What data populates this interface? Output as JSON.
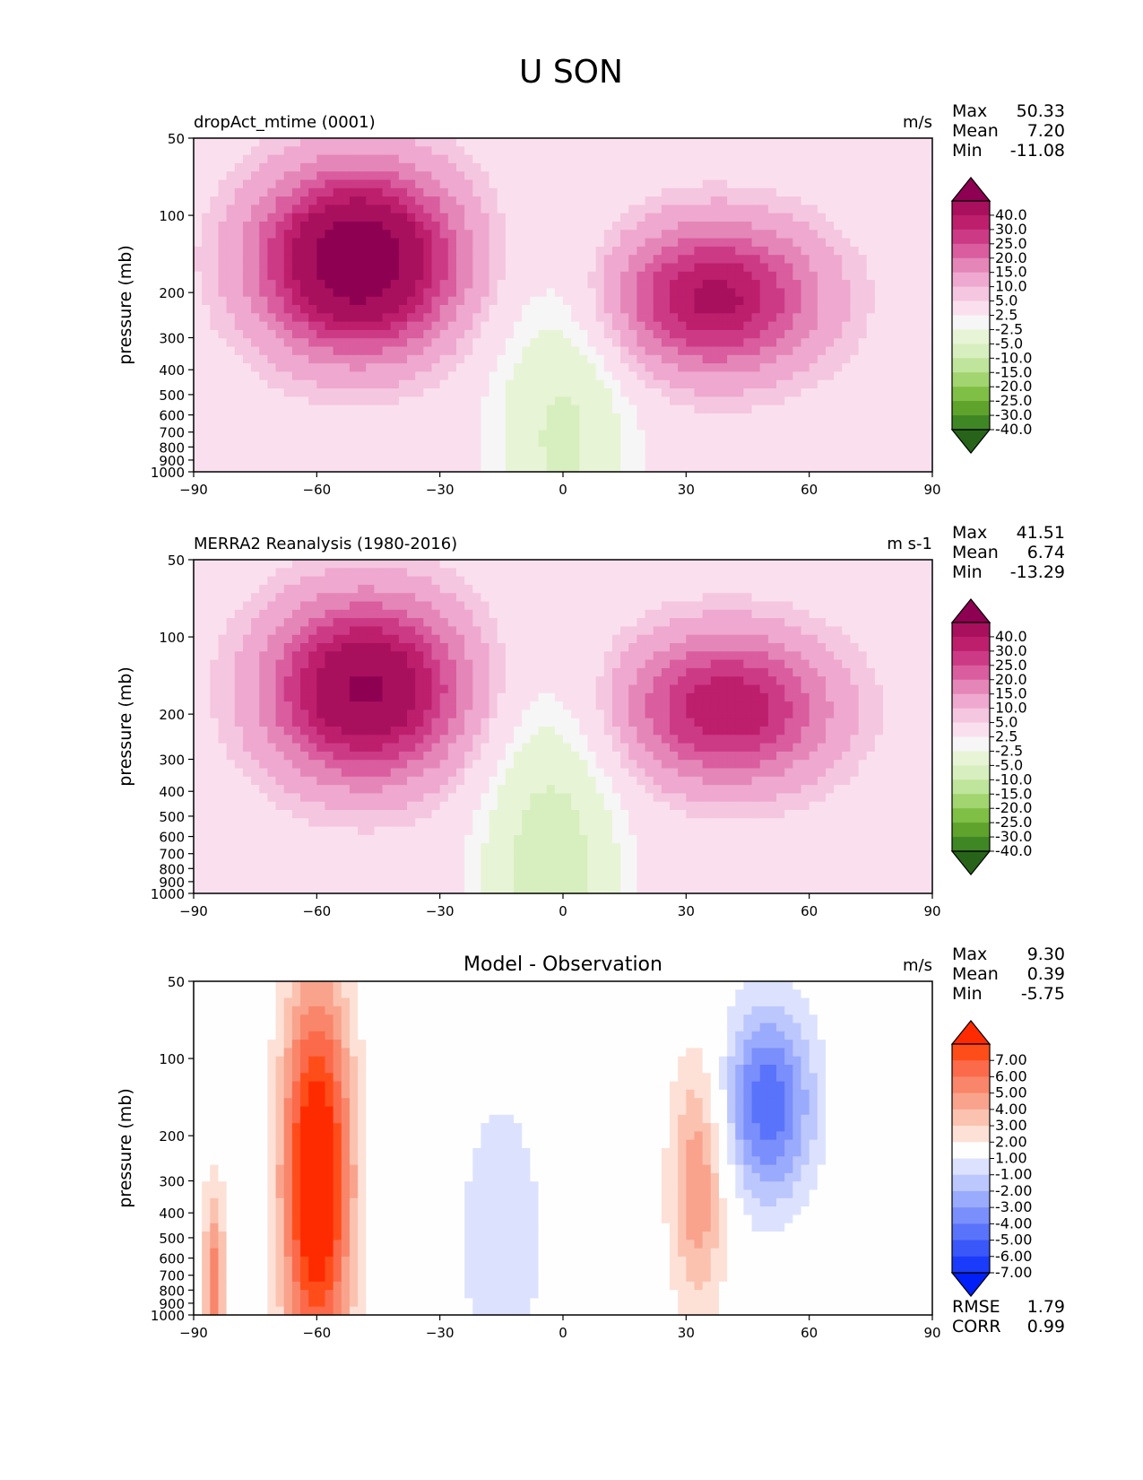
{
  "figure": {
    "title": "U SON"
  },
  "chart_data": [
    {
      "type": "contour",
      "title_left": "dropAct_mtime (0001)",
      "title_center": "",
      "units": "m/s",
      "xlabel": "",
      "ylabel": "pressure (mb)",
      "xlim": [
        -90,
        90
      ],
      "ylim": [
        1000,
        50
      ],
      "xticks": [
        "−90",
        "−60",
        "−30",
        "0",
        "30",
        "60",
        "90"
      ],
      "yticks": [
        "50",
        "100",
        "200",
        "300",
        "400",
        "500",
        "600",
        "700",
        "800",
        "900",
        "1000"
      ],
      "stats": [
        {
          "label": "Max",
          "value": "50.33"
        },
        {
          "label": "Mean",
          "value": "7.20"
        },
        {
          "label": "Min",
          "value": "-11.08"
        }
      ],
      "colorbar": {
        "labels": [
          "40.0",
          "30.0",
          "25.0",
          "20.0",
          "15.0",
          "10.0",
          "5.0",
          "2.5",
          "-2.5",
          "-5.0",
          "-10.0",
          "-15.0",
          "-20.0",
          "-25.0",
          "-30.0",
          "-40.0"
        ],
        "colors": [
          "#8e0152",
          "#a8105d",
          "#bd1f6d",
          "#cc3a86",
          "#d95d9f",
          "#e586b8",
          "#efa8cf",
          "#f5c6e0",
          "#fae0ee",
          "#f6f6f6",
          "#e8f4d6",
          "#d7efbe",
          "#bfe49b",
          "#a2d46f",
          "#7fbf45",
          "#5fa32d",
          "#3f8624",
          "#276419"
        ]
      },
      "features": [
        {
          "name": "sh-jet",
          "lat": -50,
          "lev": 150,
          "peak": 50.3,
          "sx": 16,
          "sy": 2.6
        },
        {
          "name": "nh-jet",
          "lat": 37,
          "lev": 210,
          "peak": 32,
          "sx": 17,
          "sy": 2.2
        },
        {
          "name": "tropical-easterlies",
          "lat": 0,
          "lev": 700,
          "peak": -11,
          "sx": 12,
          "sy": 5
        }
      ]
    },
    {
      "type": "contour",
      "title_left": "MERRA2 Reanalysis (1980-2016)",
      "title_center": "",
      "units": "m s-1",
      "xlabel": "",
      "ylabel": "pressure (mb)",
      "xlim": [
        -90,
        90
      ],
      "ylim": [
        1000,
        50
      ],
      "xticks": [
        "−90",
        "−60",
        "−30",
        "0",
        "30",
        "60",
        "90"
      ],
      "yticks": [
        "50",
        "100",
        "200",
        "300",
        "400",
        "500",
        "600",
        "700",
        "800",
        "900",
        "1000"
      ],
      "stats": [
        {
          "label": "Max",
          "value": "41.51"
        },
        {
          "label": "Mean",
          "value": "6.74"
        },
        {
          "label": "Min",
          "value": "-13.29"
        }
      ],
      "colorbar": {
        "labels": [
          "40.0",
          "30.0",
          "25.0",
          "20.0",
          "15.0",
          "10.0",
          "5.0",
          "2.5",
          "-2.5",
          "-5.0",
          "-10.0",
          "-15.0",
          "-20.0",
          "-25.0",
          "-30.0",
          "-40.0"
        ],
        "colors": [
          "#8e0152",
          "#a8105d",
          "#bd1f6d",
          "#cc3a86",
          "#d95d9f",
          "#e586b8",
          "#efa8cf",
          "#f5c6e0",
          "#fae0ee",
          "#f6f6f6",
          "#e8f4d6",
          "#d7efbe",
          "#bfe49b",
          "#a2d46f",
          "#7fbf45",
          "#5fa32d",
          "#3f8624",
          "#276419"
        ]
      },
      "features": [
        {
          "name": "sh-jet",
          "lat": -48,
          "lev": 160,
          "peak": 41.5,
          "sx": 16,
          "sy": 2.6
        },
        {
          "name": "nh-jet",
          "lat": 40,
          "lev": 190,
          "peak": 30,
          "sx": 17,
          "sy": 2.2
        },
        {
          "name": "tropical-easterlies",
          "lat": -3,
          "lev": 750,
          "peak": -13,
          "sx": 12,
          "sy": 5
        }
      ]
    },
    {
      "type": "contour",
      "title_left": "",
      "title_center": "Model - Observation",
      "units": "m/s",
      "xlabel": "",
      "ylabel": "pressure (mb)",
      "xlim": [
        -90,
        90
      ],
      "ylim": [
        1000,
        50
      ],
      "xticks": [
        "−90",
        "−60",
        "−30",
        "0",
        "30",
        "60",
        "90"
      ],
      "yticks": [
        "50",
        "100",
        "200",
        "300",
        "400",
        "500",
        "600",
        "700",
        "800",
        "900",
        "1000"
      ],
      "stats": [
        {
          "label": "Max",
          "value": "9.30"
        },
        {
          "label": "Mean",
          "value": "0.39"
        },
        {
          "label": "Min",
          "value": "-5.75"
        }
      ],
      "stats_bottom": [
        {
          "label": "RMSE",
          "value": "1.79"
        },
        {
          "label": "CORR",
          "value": "0.99"
        }
      ],
      "colorbar": {
        "labels": [
          "7.00",
          "6.00",
          "5.00",
          "4.00",
          "3.00",
          "2.00",
          "1.00",
          "-1.00",
          "-2.00",
          "-3.00",
          "-4.00",
          "-5.00",
          "-6.00",
          "-7.00"
        ],
        "colors": [
          "#ff2b00",
          "#ff4d1a",
          "#fb6a4a",
          "#f9866a",
          "#f9a38c",
          "#fbc2b0",
          "#fde0d6",
          "#fefefe",
          "#dce2fe",
          "#bcc7fe",
          "#9aabfd",
          "#7a8ffc",
          "#5a73fb",
          "#3a57fa",
          "#1a3bf9",
          "#0020f7"
        ]
      },
      "features": [
        {
          "name": "sh-positive",
          "lat": -60,
          "lev": 300,
          "peak": 9.3,
          "sx": 6,
          "sy": 6
        },
        {
          "name": "nh-positive",
          "lat": 33,
          "lev": 300,
          "peak": 4,
          "sx": 5,
          "sy": 4
        },
        {
          "name": "nh-negative",
          "lat": 50,
          "lev": 150,
          "peak": -5.75,
          "sx": 8,
          "sy": 3
        },
        {
          "name": "tropical-negative",
          "lat": -15,
          "lev": 500,
          "peak": -1.5,
          "sx": 10,
          "sy": 6
        },
        {
          "name": "polar-positive",
          "lat": -85,
          "lev": 750,
          "peak": 4.5,
          "sx": 2,
          "sy": 3
        }
      ]
    }
  ]
}
